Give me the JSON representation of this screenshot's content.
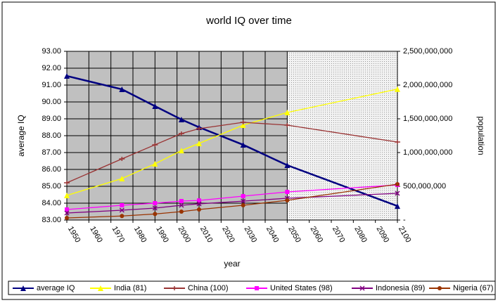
{
  "chart_data": {
    "type": "line",
    "title": "world IQ over time",
    "xlabel": "year",
    "ylabel": "average IQ",
    "y2label": "population",
    "x": [
      1950,
      1975,
      1990,
      2002,
      2010,
      2030,
      2050,
      2100
    ],
    "xlim": [
      1950,
      2100
    ],
    "xticks": [
      1950,
      1960,
      1970,
      1980,
      1990,
      2000,
      2010,
      2020,
      2030,
      2040,
      2050,
      2060,
      2070,
      2080,
      2090,
      2100
    ],
    "ylim": [
      83,
      93
    ],
    "yticks": [
      {
        "value": 83,
        "label": "83.00"
      },
      {
        "value": 84,
        "label": "84.00"
      },
      {
        "value": 85,
        "label": "85.00"
      },
      {
        "value": 86,
        "label": "86.00"
      },
      {
        "value": 87,
        "label": "87.00"
      },
      {
        "value": 88,
        "label": "88.00"
      },
      {
        "value": 89,
        "label": "89.00"
      },
      {
        "value": 90,
        "label": "90.00"
      },
      {
        "value": 91,
        "label": "91.00"
      },
      {
        "value": 92,
        "label": "92.00"
      },
      {
        "value": 93,
        "label": "93.00"
      }
    ],
    "y2lim": [
      0,
      2500000000
    ],
    "y2ticks": [
      {
        "value": 0,
        "label": "-"
      },
      {
        "value": 500000000,
        "label": "500,000,000"
      },
      {
        "value": 1000000000,
        "label": "1,000,000,000"
      },
      {
        "value": 1500000000,
        "label": "1,500,000,000"
      },
      {
        "value": 2000000000,
        "label": "2,000,000,000"
      },
      {
        "value": 2500000000,
        "label": "2,500,000,000"
      }
    ],
    "grid": true,
    "series": [
      {
        "name": "average IQ",
        "color": "#000080",
        "values": [
          91.54,
          90.75,
          89.75,
          88.96,
          88.5,
          87.46,
          86.25,
          83.83
        ]
      },
      {
        "name": "India (81)",
        "color": "#ffff00",
        "axis": "y2",
        "values": [
          365000000,
          615000000,
          833000000,
          1030000000,
          1135000000,
          1406000000,
          1594000000,
          1940000000
        ]
      },
      {
        "name": "China (100)",
        "color": "#993333",
        "axis": "y2",
        "values": [
          552000000,
          906000000,
          1115000000,
          1281000000,
          1354000000,
          1448000000,
          1406000000,
          1156000000
        ]
      },
      {
        "name": "United States (98)",
        "color": "#ff00ff",
        "axis": "y2",
        "values": [
          156000000,
          219000000,
          250000000,
          281000000,
          290000000,
          354000000,
          417000000,
          520000000
        ]
      },
      {
        "name": "Indonesia (89)",
        "color": "#800080",
        "axis": "y2",
        "values": [
          104000000,
          146000000,
          177000000,
          219000000,
          240000000,
          280000000,
          323000000,
          396000000
        ]
      },
      {
        "name": "Nigeria (67)",
        "color": "#993300",
        "axis": "y2",
        "values": [
          31000000,
          60000000,
          90000000,
          125000000,
          156000000,
          219000000,
          292000000,
          531000000
        ]
      }
    ]
  }
}
